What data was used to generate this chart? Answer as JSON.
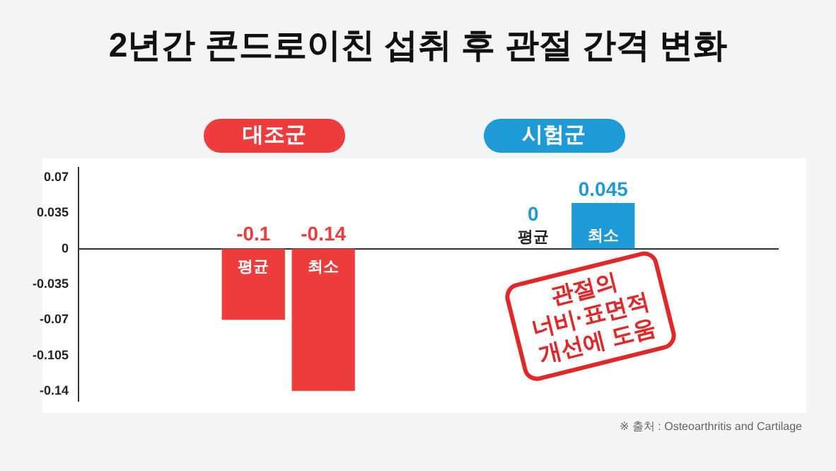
{
  "chart_data": {
    "type": "bar",
    "title": "2년간 콘드로이친 섭취 후 관절 간격 변화",
    "categories": [
      null,
      null,
      "평균",
      "최소",
      null,
      null,
      "평균",
      "최소",
      null,
      null
    ],
    "series": [
      {
        "name": "대조군",
        "color": "#ee3b3b",
        "values": [
          null,
          null,
          -0.07,
          -0.14,
          null,
          null,
          null,
          null,
          null,
          null
        ],
        "value_labels": [
          null,
          null,
          "-0.1",
          "-0.14",
          null,
          null,
          null,
          null,
          null,
          null
        ]
      },
      {
        "name": "시험군",
        "color": "#1e9ad6",
        "values": [
          null,
          null,
          null,
          null,
          null,
          null,
          0,
          0.045,
          null,
          null
        ],
        "value_labels": [
          null,
          null,
          null,
          null,
          null,
          null,
          "0",
          "0.045",
          null,
          null
        ]
      }
    ],
    "stacked": true,
    "ylim": [
      -0.15,
      0.08
    ],
    "yticks": [
      0.07,
      0.035,
      0,
      -0.035,
      -0.07,
      -0.105,
      -0.14
    ],
    "grid": false,
    "legend": "top",
    "annotations": [
      "관절의\n너비·표면적\n개선에 도움",
      "※ 출처 : Osteoarthritis and Cartilage"
    ]
  }
}
